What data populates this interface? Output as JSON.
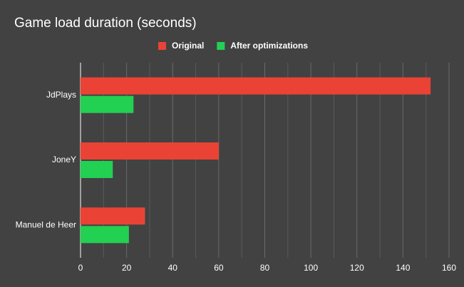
{
  "chart_data": {
    "type": "hbar",
    "title": "Game load duration (seconds)",
    "categories": [
      "JdPlays",
      "JoneY",
      "Manuel de Heer"
    ],
    "series": [
      {
        "name": "Original",
        "color": "#ea4335",
        "values": [
          152,
          60,
          28
        ]
      },
      {
        "name": "After optimizations",
        "color": "#22d152",
        "values": [
          23,
          14,
          21
        ]
      }
    ],
    "xlim": [
      0,
      160
    ],
    "xticks": [
      0,
      20,
      40,
      60,
      80,
      100,
      120,
      140,
      160
    ],
    "minor_xticks": [
      10,
      30,
      50,
      70,
      90,
      110,
      130,
      150
    ],
    "grid": true,
    "legend": "top"
  }
}
